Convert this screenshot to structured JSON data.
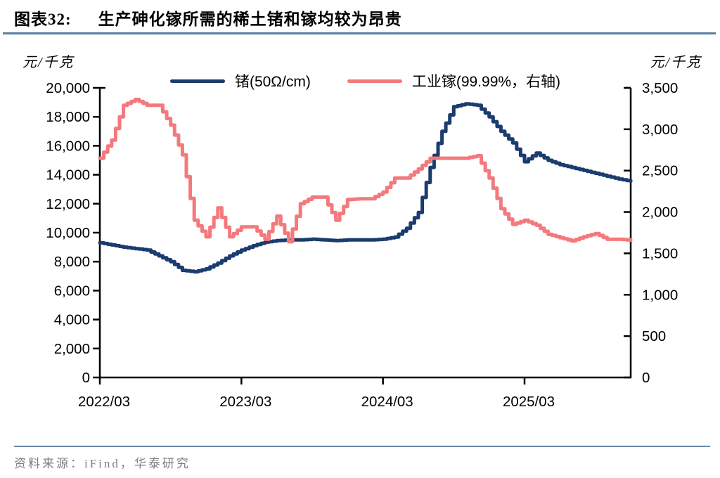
{
  "header": {
    "label": "图表32:",
    "title": "生产砷化镓所需的稀土锗和镓均较为昂贵"
  },
  "footer": {
    "source": "资料来源：iFind，华泰研究"
  },
  "colors": {
    "germanium_blue": "#1b3c6e",
    "gallium_pink": "#f4797d",
    "divider_blue": "#5b7fa3",
    "axis_black": "#000000",
    "source_gray": "#7f7f7f"
  },
  "chart_data": {
    "type": "line",
    "title": "生产砷化镓所需的稀土锗和镓均较为昂贵",
    "left_axis": {
      "unit": "元/千克",
      "min": 0,
      "max": 20000,
      "step": 2000,
      "tick_labels": [
        "0",
        "2,000",
        "4,000",
        "6,000",
        "8,000",
        "10,000",
        "12,000",
        "14,000",
        "16,000",
        "18,000",
        "20,000"
      ]
    },
    "right_axis": {
      "unit": "元/千克",
      "min": 0,
      "max": 3500,
      "step": 500,
      "tick_labels": [
        "0",
        "500",
        "1,000",
        "1,500",
        "2,000",
        "2,500",
        "3,000",
        "3,500"
      ]
    },
    "x_axis": {
      "tick_labels": [
        "2022/03",
        "2023/03",
        "2024/03",
        "2025/03"
      ],
      "tick_month_indices": [
        0,
        12,
        24,
        36
      ],
      "range": [
        "2022/03",
        "2025/12"
      ]
    },
    "x": [
      "2022/03",
      "2022/04",
      "2022/05",
      "2022/06",
      "2022/07",
      "2022/08",
      "2022/09",
      "2022/10",
      "2022/11",
      "2022/12",
      "2023/01",
      "2023/02",
      "2023/03",
      "2023/04",
      "2023/05",
      "2023/06",
      "2023/07",
      "2023/08",
      "2023/09",
      "2023/10",
      "2023/11",
      "2023/12",
      "2024/01",
      "2024/02",
      "2024/03",
      "2024/04",
      "2024/05",
      "2024/06",
      "2024/07",
      "2024/08",
      "2024/09",
      "2024/10",
      "2024/11",
      "2024/12",
      "2025/01",
      "2025/02",
      "2025/03",
      "2025/04",
      "2025/05",
      "2025/06",
      "2025/07",
      "2025/08",
      "2025/09",
      "2025/10",
      "2025/11",
      "2025/12"
    ],
    "series": [
      {
        "name": "锗(50Ω/cm)",
        "axis": "left",
        "color": "#1b3c6e",
        "unit": "元/千克",
        "values": [
          9300,
          9150,
          9000,
          8900,
          8800,
          8400,
          8000,
          7400,
          7300,
          7500,
          7900,
          8400,
          8800,
          9100,
          9350,
          9450,
          9500,
          9500,
          9550,
          9500,
          9450,
          9500,
          9500,
          9500,
          9550,
          9700,
          10300,
          11400,
          14500,
          17000,
          18700,
          18900,
          18800,
          18000,
          17000,
          16200,
          14900,
          15500,
          15000,
          14700,
          14500,
          14300,
          14100,
          13900,
          13700,
          13550
        ]
      },
      {
        "name": "工业镓(99.99%，右轴)",
        "axis": "right",
        "color": "#f4797d",
        "unit": "元/千克",
        "values": [
          2650,
          2870,
          3290,
          3360,
          3290,
          3290,
          3050,
          2690,
          1900,
          1700,
          2050,
          1700,
          1820,
          1820,
          1670,
          1950,
          1640,
          2100,
          2180,
          2180,
          1900,
          2150,
          2160,
          2160,
          2240,
          2410,
          2410,
          2520,
          2650,
          2650,
          2650,
          2650,
          2680,
          2410,
          2040,
          1850,
          1900,
          1840,
          1730,
          1690,
          1650,
          1700,
          1740,
          1670,
          1670,
          1660
        ]
      }
    ],
    "legend_position": "top-center",
    "grid": false
  }
}
